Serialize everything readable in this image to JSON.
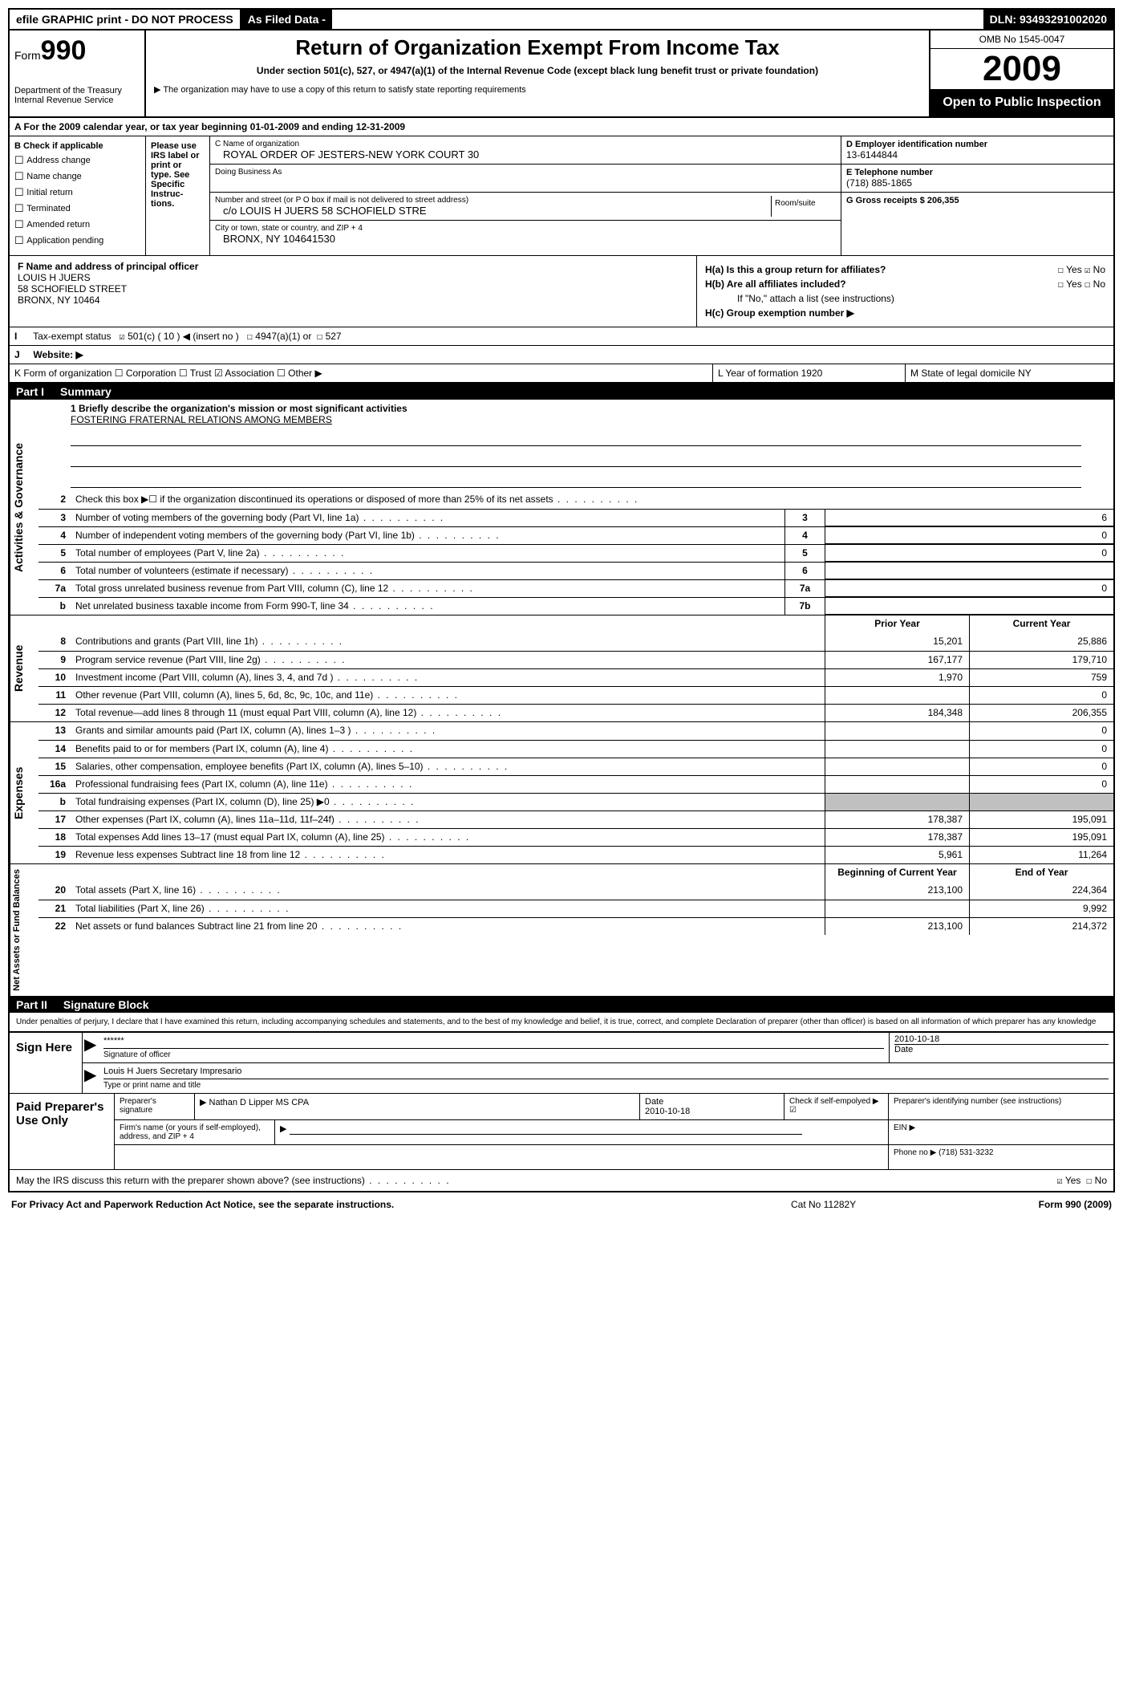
{
  "top": {
    "efile": "efile GRAPHIC print - DO NOT PROCESS",
    "asfiled": "As Filed Data -",
    "dln": "DLN: 93493291002020"
  },
  "header": {
    "form_prefix": "Form",
    "form_no": "990",
    "dept": "Department of the Treasury",
    "irs": "Internal Revenue Service",
    "title": "Return of Organization Exempt From Income Tax",
    "subtitle": "Under section 501(c), 527, or 4947(a)(1) of the Internal Revenue Code (except black lung benefit trust or private foundation)",
    "note": "▶ The organization may have to use a copy of this return to satisfy state reporting requirements",
    "omb": "OMB No 1545-0047",
    "year": "2009",
    "inspect": "Open to Public Inspection"
  },
  "rowA": "A  For the 2009 calendar year, or tax year beginning 01-01-2009    and ending 12-31-2009",
  "colB": {
    "title": "B  Check if applicable",
    "items": [
      "Address change",
      "Name change",
      "Initial return",
      "Terminated",
      "Amended return",
      "Application pending"
    ]
  },
  "irsbox": "Please use IRS label or print or type. See Specific Instruc-tions.",
  "nameblock": {
    "c_lab": "C Name of organization",
    "c_val": "ROYAL ORDER OF JESTERS-NEW YORK COURT 30",
    "dba_lab": "Doing Business As",
    "addr_lab": "Number and street (or P O  box if mail is not delivered to street address)",
    "addr_val": "c/o LOUIS H JUERS 58 SCHOFIELD STRE",
    "room_lab": "Room/suite",
    "city_lab": "City or town, state or country, and ZIP + 4",
    "city_val": "BRONX, NY  104641530"
  },
  "colD": {
    "d_lab": "D Employer identification number",
    "d_val": "13-6144844",
    "e_lab": "E Telephone number",
    "e_val": "(718) 885-1865",
    "g_lab": "G Gross receipts $ 206,355"
  },
  "secF": {
    "lab": "F   Name and address of principal officer",
    "name": "LOUIS H JUERS",
    "street": "58 SCHOFIELD STREET",
    "city": "BRONX, NY  10464"
  },
  "secH": {
    "ha": "H(a)  Is this a group return for affiliates?",
    "hb": "H(b)  Are all affiliates included?",
    "hb_note": "If \"No,\" attach a list  (see instructions)",
    "hc": "H(c)   Group exemption number ▶",
    "yes": "Yes",
    "no": "No"
  },
  "rowI": {
    "lab": "I",
    "text": "Tax-exempt status",
    "opt1": "501(c) ( 10 ) ◀ (insert no )",
    "opt2": "4947(a)(1) or",
    "opt3": "527"
  },
  "rowJ": {
    "lab": "J",
    "text": "Website: ▶"
  },
  "rowK": {
    "k": "K Form of organization   ☐ Corporation ☐ Trust ☑ Association ☐ Other ▶",
    "l": "L Year of formation  1920",
    "m": "M State of legal domicile  NY"
  },
  "part1": {
    "num": "Part I",
    "title": "Summary"
  },
  "mission": {
    "line1": "1      Briefly describe the organization's mission or most significant activities",
    "text": "FOSTERING FRATERNAL RELATIONS AMONG MEMBERS"
  },
  "gov_lines": [
    {
      "n": "2",
      "d": "Check this box ▶☐ if the organization discontinued its operations or disposed of more than 25% of its net assets"
    },
    {
      "n": "3",
      "d": "Number of voting members of the governing body (Part VI, line 1a)",
      "r": "3",
      "v": "6"
    },
    {
      "n": "4",
      "d": "Number of independent voting members of the governing body (Part VI, line 1b)",
      "r": "4",
      "v": "0"
    },
    {
      "n": "5",
      "d": "Total number of employees (Part V, line 2a)",
      "r": "5",
      "v": "0"
    },
    {
      "n": "6",
      "d": "Total number of volunteers (estimate if necessary)",
      "r": "6",
      "v": ""
    },
    {
      "n": "7a",
      "d": "Total gross unrelated business revenue from Part VIII, column (C), line 12",
      "r": "7a",
      "v": "0"
    },
    {
      "n": "b",
      "d": "Net unrelated business taxable income from Form 990-T, line 34",
      "r": "7b",
      "v": ""
    }
  ],
  "col_hdrs": {
    "py": "Prior Year",
    "cy": "Current Year"
  },
  "rev_lines": [
    {
      "n": "8",
      "d": "Contributions and grants (Part VIII, line 1h)",
      "v1": "15,201",
      "v2": "25,886"
    },
    {
      "n": "9",
      "d": "Program service revenue (Part VIII, line 2g)",
      "v1": "167,177",
      "v2": "179,710"
    },
    {
      "n": "10",
      "d": "Investment income (Part VIII, column (A), lines 3, 4, and 7d )",
      "v1": "1,970",
      "v2": "759"
    },
    {
      "n": "11",
      "d": "Other revenue (Part VIII, column (A), lines 5, 6d, 8c, 9c, 10c, and 11e)",
      "v1": "",
      "v2": "0"
    },
    {
      "n": "12",
      "d": "Total revenue—add lines 8 through 11 (must equal Part VIII, column (A), line 12)",
      "v1": "184,348",
      "v2": "206,355"
    }
  ],
  "exp_lines": [
    {
      "n": "13",
      "d": "Grants and similar amounts paid (Part IX, column (A), lines 1–3 )",
      "v1": "",
      "v2": "0"
    },
    {
      "n": "14",
      "d": "Benefits paid to or for members (Part IX, column (A), line 4)",
      "v1": "",
      "v2": "0"
    },
    {
      "n": "15",
      "d": "Salaries, other compensation, employee benefits (Part IX, column (A), lines 5–10)",
      "v1": "",
      "v2": "0"
    },
    {
      "n": "16a",
      "d": "Professional fundraising fees (Part IX, column (A), line 11e)",
      "v1": "",
      "v2": "0"
    },
    {
      "n": "b",
      "d": "Total fundraising expenses (Part IX, column (D), line 25) ▶0",
      "v1": "",
      "v2": "",
      "gray": true
    },
    {
      "n": "17",
      "d": "Other expenses (Part IX, column (A), lines 11a–11d, 11f–24f)",
      "v1": "178,387",
      "v2": "195,091"
    },
    {
      "n": "18",
      "d": "Total expenses  Add lines 13–17 (must equal Part IX, column (A), line 25)",
      "v1": "178,387",
      "v2": "195,091"
    },
    {
      "n": "19",
      "d": "Revenue less expenses  Subtract line 18 from line 12",
      "v1": "5,961",
      "v2": "11,264"
    }
  ],
  "na_hdrs": {
    "by": "Beginning of Current Year",
    "ey": "End of Year"
  },
  "na_lines": [
    {
      "n": "20",
      "d": "Total assets (Part X, line 16)",
      "v1": "213,100",
      "v2": "224,364"
    },
    {
      "n": "21",
      "d": "Total liabilities (Part X, line 26)",
      "v1": "",
      "v2": "9,992"
    },
    {
      "n": "22",
      "d": "Net assets or fund balances  Subtract line 21 from line 20",
      "v1": "213,100",
      "v2": "214,372"
    }
  ],
  "part2": {
    "num": "Part II",
    "title": "Signature Block"
  },
  "sig": {
    "decl": "Under penalties of perjury, I declare that I have examined this return, including accompanying schedules and statements, and to the best of my knowledge and belief, it is true, correct, and complete  Declaration of preparer (other than officer) is based on all information of which preparer has any knowledge",
    "sign_here": "Sign Here",
    "stars": "******",
    "sig_of": "Signature of officer",
    "date1": "2010-10-18",
    "date_lab": "Date",
    "name": "Louis H Juers Secretary Impresario",
    "name_lab": "Type or print name and title"
  },
  "prep": {
    "lab": "Paid Preparer's Use Only",
    "sig_lab": "Preparer's signature",
    "sig_name": "Nathan D Lipper MS CPA",
    "date_lab": "Date",
    "date": "2010-10-18",
    "check_lab": "Check if self-empolyed ▶ ☑",
    "pin_lab": "Preparer's identifying number (see instructions)",
    "firm_lab": "Firm's name (or yours if self-employed), address, and ZIP + 4",
    "ein_lab": "EIN ▶",
    "phone_lab": "Phone no  ▶  (718) 531-3232"
  },
  "discuss": {
    "q": "May the IRS discuss this return with the preparer shown above? (see instructions)",
    "yes": "Yes",
    "no": "No"
  },
  "footer": {
    "l": "For Privacy Act and Paperwork Reduction Act Notice, see the separate instructions.",
    "m": "Cat  No  11282Y",
    "r": "Form 990 (2009)"
  },
  "vtabs": {
    "gov": "Activities & Governance",
    "rev": "Revenue",
    "exp": "Expenses",
    "na": "Net Assets or Fund Balances"
  }
}
